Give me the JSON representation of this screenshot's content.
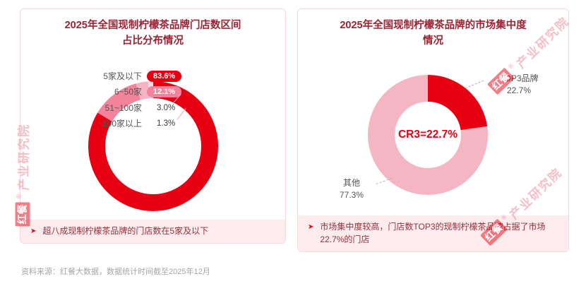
{
  "page": {
    "source_note": "资料来源：红餐大数据，数据统计时间截至2025年12月",
    "accent_color": "#e60012",
    "watermark": {
      "logo": "红餐",
      "reg": "®",
      "text": "产业研究院"
    }
  },
  "panels": {
    "left": {
      "title_line1": "2025年全国现制柠檬茶品牌门店数区间",
      "title_line2": "占比分布情况",
      "note_marker": "➤",
      "note": "超八成现制柠檬茶品牌的门店数在5家及以下"
    },
    "right": {
      "title_line1": "2025年全国现制柠檬茶品牌的市场集中度",
      "title_line2": "情况",
      "note_marker": "➤",
      "note": "市场集中度较高，门店数TOP3的现制柠檬茶品牌占据了市场22.7%的门店"
    }
  },
  "chart_data": [
    {
      "type": "pie",
      "subtype": "donut-ring",
      "title": "2025年全国现制柠檬茶品牌门店数区间占比分布情况",
      "categories": [
        "5家及以下",
        "6~50家",
        "51~100家",
        "100家以上"
      ],
      "values": [
        83.6,
        12.1,
        3.0,
        1.3
      ],
      "display_values": [
        "83.6%",
        "12.1%",
        "3.0%",
        "1.3%"
      ],
      "unit": "%",
      "colors": [
        "#e60012",
        "#f2839a",
        "#f7b3c2",
        "#fbd7de"
      ],
      "legend_position": "upper-left labels with leader lines",
      "start_angle": "top, clockwise"
    },
    {
      "type": "pie",
      "subtype": "donut",
      "title": "2025年全国现制柠檬茶品牌的市场集中度情况",
      "categories": [
        "TOP3品牌",
        "其他"
      ],
      "values": [
        22.7,
        77.3
      ],
      "display_values": [
        "22.7%",
        "77.3%"
      ],
      "unit": "%",
      "colors": [
        "#e60012",
        "#f5b6c3"
      ],
      "center_label": "CR3=22.7%",
      "legend_position": "callout labels with dashed leader lines",
      "start_angle": "top, clockwise"
    }
  ]
}
